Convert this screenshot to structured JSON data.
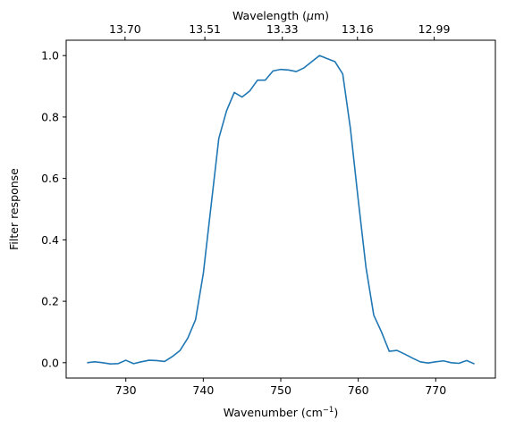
{
  "chart_data": {
    "type": "line",
    "xlabel": "Wavenumber (cm",
    "xlabel_sup": "−1",
    "xlabel_close": ")",
    "ylabel": "Filter response",
    "top_xlabel_prefix": "Wavelength (",
    "top_xlabel_mu": "μ",
    "top_xlabel_suffix": "m)",
    "xlim": [
      722.3,
      777.7
    ],
    "ylim": [
      -0.05,
      1.05
    ],
    "x_ticks": [
      730,
      740,
      750,
      760,
      770
    ],
    "x_tick_labels": [
      "730",
      "740",
      "750",
      "760",
      "770"
    ],
    "y_ticks": [
      0.0,
      0.2,
      0.4,
      0.6,
      0.8,
      1.0
    ],
    "y_tick_labels": [
      "0.0",
      "0.2",
      "0.4",
      "0.6",
      "0.8",
      "1.0"
    ],
    "top_ticks": [
      729.9,
      740.2,
      750.2,
      759.9,
      769.8
    ],
    "top_tick_labels": [
      "13.70",
      "13.51",
      "13.33",
      "13.16",
      "12.99"
    ],
    "line_color": "#1f77b4",
    "series": [
      {
        "x": [
          725,
          726,
          727,
          728,
          729,
          730,
          731,
          732,
          733,
          734,
          735,
          736,
          737,
          738,
          739,
          740,
          741,
          742,
          743,
          744,
          745,
          746,
          747,
          748,
          749,
          750,
          751,
          752,
          753,
          754,
          755,
          756,
          757,
          758,
          759,
          760,
          761,
          762,
          763,
          764,
          765,
          766,
          767,
          768,
          769,
          770,
          771,
          772,
          773,
          774,
          775
        ],
        "values": [
          0.0,
          0.003,
          0.0,
          -0.004,
          -0.003,
          0.008,
          -0.003,
          0.003,
          0.008,
          0.007,
          0.004,
          0.02,
          0.04,
          0.08,
          0.14,
          0.29,
          0.51,
          0.73,
          0.82,
          0.88,
          0.865,
          0.885,
          0.92,
          0.92,
          0.95,
          0.955,
          0.953,
          0.948,
          0.96,
          0.98,
          1.0,
          0.99,
          0.98,
          0.94,
          0.76,
          0.53,
          0.31,
          0.155,
          0.1,
          0.037,
          0.04,
          0.028,
          0.015,
          0.003,
          -0.001,
          0.003,
          0.006,
          0.0,
          -0.002,
          0.007,
          -0.004
        ]
      }
    ]
  }
}
